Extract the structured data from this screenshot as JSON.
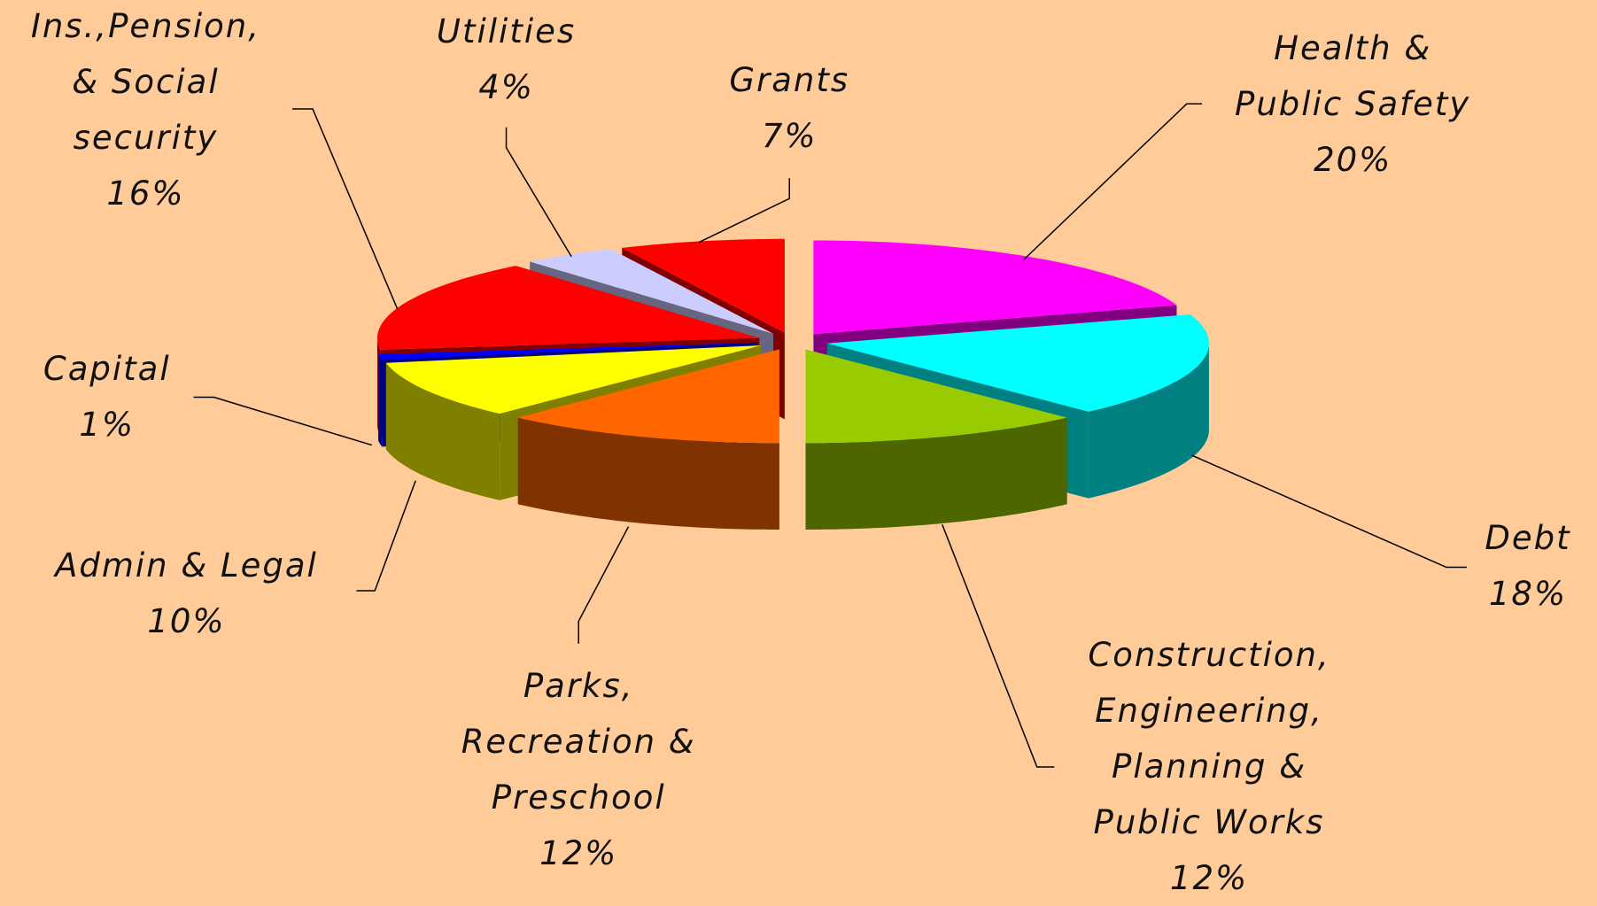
{
  "chart_data": {
    "type": "pie3d",
    "categories": [
      "Health &\nPublic Safety",
      "Debt",
      "Construction,\nEngineering,\nPlanning &\nPublic Works",
      "Parks,\nRecreation &\nPreschool",
      "Admin & Legal",
      "Capital",
      "Ins.,Pension,\n& Social\nsecurity",
      "Utilities",
      "Grants"
    ],
    "values": [
      20,
      18,
      12,
      12,
      10,
      1,
      16,
      4,
      7
    ],
    "value_labels": [
      "20%",
      "18%",
      "12%",
      "12%",
      "10%",
      "1%",
      "16%",
      "4%",
      "7%"
    ],
    "colors": [
      "#ff00ff",
      "#00ffff",
      "#99cc00",
      "#ff6600",
      "#ffff00",
      "#0000ff",
      "#ff0000",
      "#ccccff",
      "#ff0000"
    ]
  }
}
